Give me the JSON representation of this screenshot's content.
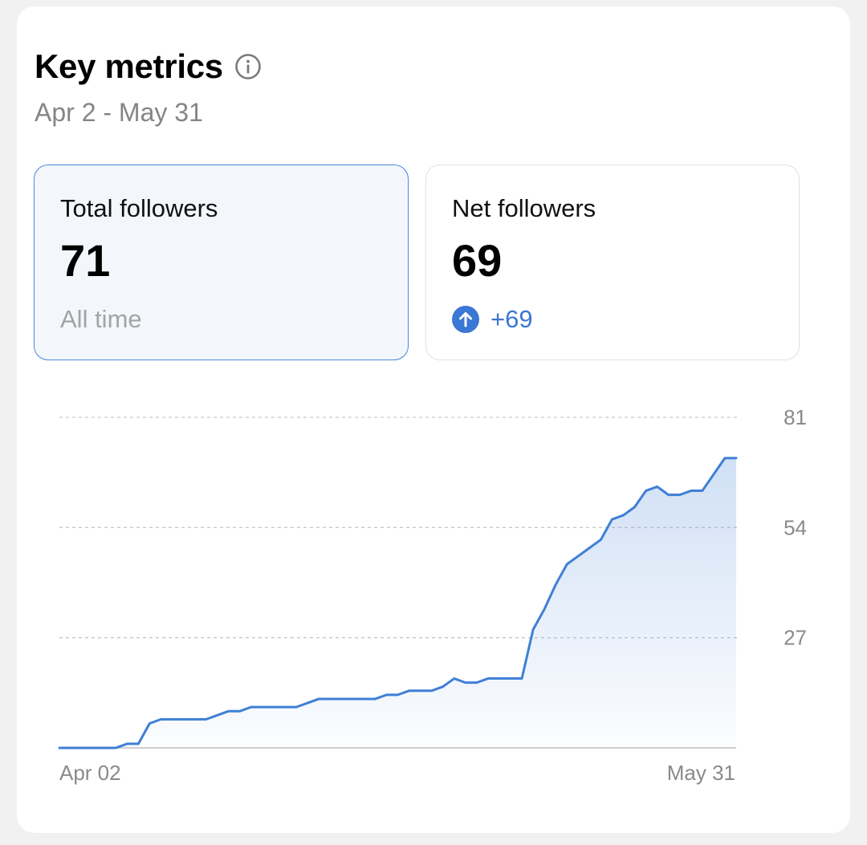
{
  "header": {
    "title": "Key metrics",
    "date_range": "Apr 2 - May 31",
    "info_icon": "info-circle-icon"
  },
  "metrics": {
    "total": {
      "label": "Total followers",
      "value": "71",
      "sub": "All time",
      "selected": true
    },
    "net": {
      "label": "Net followers",
      "value": "69",
      "change": "+69",
      "change_icon": "arrow-up-circle-icon"
    }
  },
  "colors": {
    "accent": "#3b77d4",
    "line": "#3f7fd6",
    "selected_bg": "#f3f7fc"
  },
  "chart_data": {
    "type": "area",
    "title": "",
    "xlabel": "",
    "ylabel": "",
    "x_tick_labels": [
      "Apr 02",
      "May 31"
    ],
    "y_ticks": [
      81,
      54,
      27
    ],
    "ylim": [
      0,
      81
    ],
    "y_axis_side": "right",
    "grid": true,
    "series": [
      {
        "values": [
          0,
          0,
          0,
          0,
          0,
          0,
          1,
          1,
          6,
          7,
          7,
          7,
          7,
          7,
          8,
          9,
          9,
          10,
          10,
          10,
          10,
          10,
          11,
          12,
          12,
          12,
          12,
          12,
          12,
          13,
          13,
          14,
          14,
          14,
          15,
          17,
          16,
          16,
          17,
          17,
          17,
          17,
          29,
          34,
          40,
          45,
          47,
          49,
          51,
          56,
          57,
          59,
          63,
          64,
          62,
          62,
          63,
          63,
          67,
          71,
          71
        ]
      }
    ]
  }
}
